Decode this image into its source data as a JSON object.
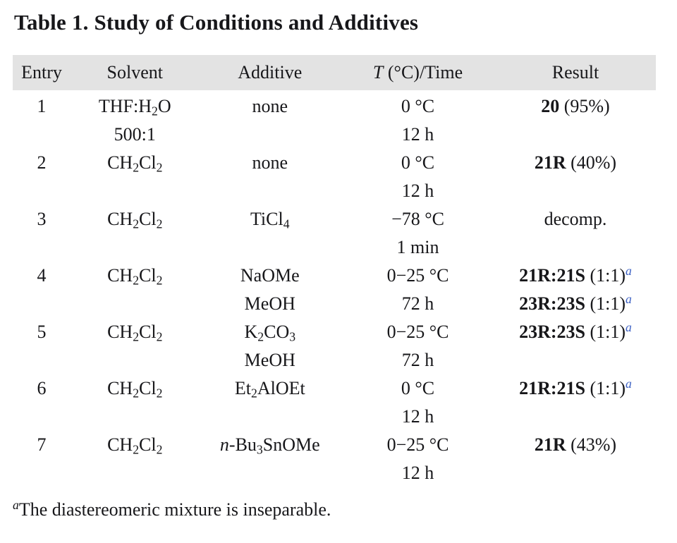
{
  "title": "Table 1. Study of Conditions and Additives",
  "colors": {
    "header_bg": "#e3e3e3",
    "text": "#17171a",
    "marker_blue": "#3e62c4",
    "page_bg": "#ffffff"
  },
  "table": {
    "header": [
      [
        {
          "t": "Entry"
        }
      ],
      [
        {
          "t": "Solvent"
        }
      ],
      [
        {
          "t": "Additive"
        }
      ],
      [
        {
          "t": "T",
          "s": "i"
        },
        {
          "t": " (°C)/Time"
        }
      ],
      [
        {
          "t": "Result"
        }
      ]
    ],
    "rows": [
      {
        "entry": [
          [
            {
              "t": "1"
            }
          ],
          []
        ],
        "solvent": [
          [
            {
              "t": "THF:H"
            },
            {
              "t": "2",
              "s": "sub"
            },
            {
              "t": "O"
            }
          ],
          [
            {
              "t": "500:1"
            }
          ]
        ],
        "additive": [
          [
            {
              "t": "none"
            }
          ],
          []
        ],
        "temp": [
          [
            {
              "t": "0 °C"
            }
          ],
          [
            {
              "t": "12 h"
            }
          ]
        ],
        "result": [
          [
            {
              "t": "20",
              "s": "b"
            },
            {
              "t": " (95%)"
            }
          ],
          []
        ]
      },
      {
        "entry": [
          [
            {
              "t": "2"
            }
          ],
          []
        ],
        "solvent": [
          [
            {
              "t": "CH"
            },
            {
              "t": "2",
              "s": "sub"
            },
            {
              "t": "Cl"
            },
            {
              "t": "2",
              "s": "sub"
            }
          ],
          []
        ],
        "additive": [
          [
            {
              "t": "none"
            }
          ],
          []
        ],
        "temp": [
          [
            {
              "t": "0 °C"
            }
          ],
          [
            {
              "t": "12 h"
            }
          ]
        ],
        "result": [
          [
            {
              "t": "21R",
              "s": "b"
            },
            {
              "t": " (40%)"
            }
          ],
          []
        ]
      },
      {
        "entry": [
          [
            {
              "t": "3"
            }
          ],
          []
        ],
        "solvent": [
          [
            {
              "t": "CH"
            },
            {
              "t": "2",
              "s": "sub"
            },
            {
              "t": "Cl"
            },
            {
              "t": "2",
              "s": "sub"
            }
          ],
          []
        ],
        "additive": [
          [
            {
              "t": "TiCl"
            },
            {
              "t": "4",
              "s": "sub"
            }
          ],
          []
        ],
        "temp": [
          [
            {
              "t": "−78 °C"
            }
          ],
          [
            {
              "t": "1 min"
            }
          ]
        ],
        "result": [
          [
            {
              "t": "decomp."
            }
          ],
          []
        ]
      },
      {
        "entry": [
          [
            {
              "t": "4"
            }
          ],
          []
        ],
        "solvent": [
          [
            {
              "t": "CH"
            },
            {
              "t": "2",
              "s": "sub"
            },
            {
              "t": "Cl"
            },
            {
              "t": "2",
              "s": "sub"
            }
          ],
          []
        ],
        "additive": [
          [
            {
              "t": "NaOMe"
            }
          ],
          [
            {
              "t": "MeOH"
            }
          ]
        ],
        "temp": [
          [
            {
              "t": "0−25 °C"
            }
          ],
          [
            {
              "t": "72 h"
            }
          ]
        ],
        "result": [
          [
            {
              "t": "21R:21S",
              "s": "b"
            },
            {
              "t": " (1:1)"
            },
            {
              "t": "a",
              "s": "sup i blue"
            }
          ],
          [
            {
              "t": "23R:23S",
              "s": "b"
            },
            {
              "t": " (1:1)"
            },
            {
              "t": "a",
              "s": "sup i blue"
            }
          ]
        ]
      },
      {
        "entry": [
          [
            {
              "t": "5"
            }
          ],
          []
        ],
        "solvent": [
          [
            {
              "t": "CH"
            },
            {
              "t": "2",
              "s": "sub"
            },
            {
              "t": "Cl"
            },
            {
              "t": "2",
              "s": "sub"
            }
          ],
          []
        ],
        "additive": [
          [
            {
              "t": "K"
            },
            {
              "t": "2",
              "s": "sub"
            },
            {
              "t": "CO"
            },
            {
              "t": "3",
              "s": "sub"
            }
          ],
          [
            {
              "t": "MeOH"
            }
          ]
        ],
        "temp": [
          [
            {
              "t": "0−25 °C"
            }
          ],
          [
            {
              "t": "72 h"
            }
          ]
        ],
        "result": [
          [
            {
              "t": "23R:23S",
              "s": "b"
            },
            {
              "t": " (1:1)"
            },
            {
              "t": "a",
              "s": "sup i blue"
            }
          ],
          []
        ]
      },
      {
        "entry": [
          [
            {
              "t": "6"
            }
          ],
          []
        ],
        "solvent": [
          [
            {
              "t": "CH"
            },
            {
              "t": "2",
              "s": "sub"
            },
            {
              "t": "Cl"
            },
            {
              "t": "2",
              "s": "sub"
            }
          ],
          []
        ],
        "additive": [
          [
            {
              "t": "Et"
            },
            {
              "t": "2",
              "s": "sub"
            },
            {
              "t": "AlOEt"
            }
          ],
          []
        ],
        "temp": [
          [
            {
              "t": "0 °C"
            }
          ],
          [
            {
              "t": "12 h"
            }
          ]
        ],
        "result": [
          [
            {
              "t": "21R:21S",
              "s": "b"
            },
            {
              "t": " (1:1)"
            },
            {
              "t": "a",
              "s": "sup i blue"
            }
          ],
          []
        ]
      },
      {
        "entry": [
          [
            {
              "t": "7"
            }
          ],
          []
        ],
        "solvent": [
          [
            {
              "t": "CH"
            },
            {
              "t": "2",
              "s": "sub"
            },
            {
              "t": "Cl"
            },
            {
              "t": "2",
              "s": "sub"
            }
          ],
          []
        ],
        "additive": [
          [
            {
              "t": "n",
              "s": "i"
            },
            {
              "t": "-Bu"
            },
            {
              "t": "3",
              "s": "sub"
            },
            {
              "t": "SnOMe"
            }
          ],
          []
        ],
        "temp": [
          [
            {
              "t": "0−25 °C"
            }
          ],
          [
            {
              "t": "12 h"
            }
          ]
        ],
        "result": [
          [
            {
              "t": "21R",
              "s": "b"
            },
            {
              "t": " (43%)"
            }
          ],
          []
        ]
      }
    ]
  },
  "footnote": {
    "segments": [
      {
        "t": "a",
        "s": "sup i"
      },
      {
        "t": "The diastereomeric mixture is inseparable."
      }
    ]
  }
}
